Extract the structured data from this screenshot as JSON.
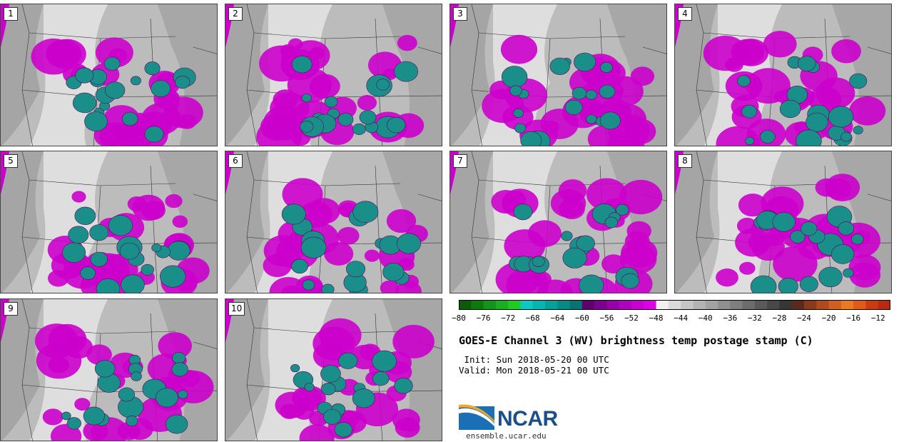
{
  "panels": [
    {
      "label": "1"
    },
    {
      "label": "2"
    },
    {
      "label": "3"
    },
    {
      "label": "4"
    },
    {
      "label": "5"
    },
    {
      "label": "6"
    },
    {
      "label": "7"
    },
    {
      "label": "8"
    },
    {
      "label": "9"
    },
    {
      "label": "10"
    }
  ],
  "colorbar": {
    "ticks": [
      "−80",
      "−76",
      "−72",
      "−68",
      "−64",
      "−60",
      "−56",
      "−52",
      "−48",
      "−44",
      "−40",
      "−36",
      "−32",
      "−28",
      "−24",
      "−20",
      "−16",
      "−12"
    ],
    "colors": [
      "#0a5c0a",
      "#0e7a0e",
      "#13951a",
      "#19af1f",
      "#1fca24",
      "#0ac9c3",
      "#07b5b0",
      "#06a09c",
      "#068a86",
      "#067572",
      "#5e0070",
      "#7a0090",
      "#9600a8",
      "#b000c0",
      "#c800d4",
      "#dd00e2",
      "#f0f0f0",
      "#dadada",
      "#c6c6c6",
      "#b4b4b4",
      "#a2a2a2",
      "#909090",
      "#7e7e7e",
      "#6c6c6c",
      "#5a5a5a",
      "#484848",
      "#363636",
      "#5a2a1a",
      "#8a3a1a",
      "#b04a1c",
      "#d0601e",
      "#ea7a20",
      "#e05a1a",
      "#cc3a14",
      "#bb2a10"
    ]
  },
  "title": "GOES-E Channel 3 (WV) brightness temp postage stamp (C)",
  "init": " Init: Sun 2018-05-20 00 UTC",
  "valid": "Valid: Mon 2018-05-21 00 UTC",
  "logo_text": "NCAR",
  "url": "ensemble.ucar.edu",
  "palette": {
    "magenta": "#cc00cc",
    "teal": "#1a8f8a",
    "grey_light": "#e6e6e6",
    "grey_mid": "#bcbcbc",
    "grey_dark": "#8e8e8e"
  }
}
